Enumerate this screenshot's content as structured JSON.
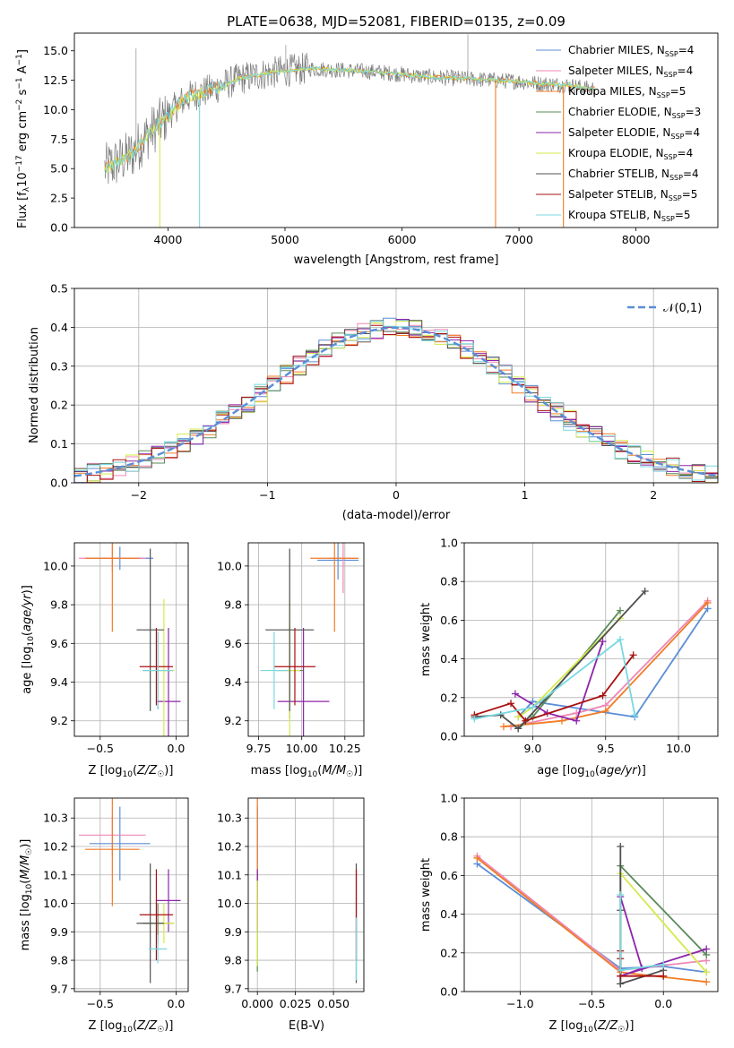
{
  "colors": [
    "#5b8ed6",
    "#ee88b4",
    "#f07c26",
    "#5a8a5a",
    "#8e24aa",
    "#d4ea4a",
    "#505050",
    "#aa1010",
    "#78d8e0"
  ],
  "chart_data": [
    {
      "id": "spectrum",
      "type": "line",
      "title": "PLATE=0638, MJD=52081, FIBERID=0135, z=0.09",
      "xlabel": "wavelength [Angstrom, rest frame]",
      "ylabel": "Flux [f_λ 10^-17 erg cm^-2 s^-1 A^-1]",
      "xlim": [
        3200,
        8700
      ],
      "ylim": [
        0,
        16.5
      ],
      "xticks": [
        4000,
        5000,
        6000,
        7000,
        8000
      ],
      "yticks": [
        0.0,
        2.5,
        5.0,
        7.5,
        10.0,
        12.5,
        15.0
      ],
      "continuum": [
        [
          3460,
          5.0
        ],
        [
          3560,
          5.5
        ],
        [
          3700,
          6.3
        ],
        [
          3800,
          7.6
        ],
        [
          3900,
          8.6
        ],
        [
          4000,
          9.5
        ],
        [
          4100,
          10.6
        ],
        [
          4200,
          11.2
        ],
        [
          4400,
          11.8
        ],
        [
          4600,
          12.6
        ],
        [
          4800,
          13.0
        ],
        [
          5000,
          13.3
        ],
        [
          5200,
          13.5
        ],
        [
          5400,
          13.4
        ],
        [
          5600,
          13.3
        ],
        [
          5800,
          13.2
        ],
        [
          6000,
          13.0
        ],
        [
          6200,
          12.8
        ],
        [
          6400,
          12.7
        ],
        [
          6600,
          12.6
        ],
        [
          6800,
          12.5
        ],
        [
          7000,
          12.4
        ],
        [
          7200,
          12.2
        ],
        [
          7400,
          12.1
        ],
        [
          7600,
          11.8
        ]
      ],
      "spikes_up": [
        [
          6563,
          16.4
        ],
        [
          3727,
          15.2
        ],
        [
          5007,
          15.5
        ]
      ],
      "spikes_down": [
        [
          3930,
          0
        ],
        [
          4270,
          0
        ],
        [
          6800,
          0
        ],
        [
          7380,
          0
        ]
      ],
      "legend": [
        "Chabrier MILES, N_SSP=4",
        "Salpeter MILES, N_SSP=4",
        "Kroupa MILES, N_SSP=5",
        "Chabrier ELODIE, N_SSP=3",
        "Salpeter ELODIE, N_SSP=4",
        "Kroupa ELODIE, N_SSP=4",
        "Chabrier STELIB, N_SSP=4",
        "Salpeter STELIB, N_SSP=5",
        "Kroupa STELIB, N_SSP=5"
      ]
    },
    {
      "id": "residuals",
      "type": "line",
      "title": "",
      "xlabel": "(data-model)/error",
      "ylabel": "Normed distribution",
      "xlim": [
        -2.5,
        2.5
      ],
      "ylim": [
        0,
        0.5
      ],
      "xticks": [
        -2,
        -1,
        0,
        1,
        2
      ],
      "yticks": [
        0.0,
        0.1,
        0.2,
        0.3,
        0.4,
        0.5
      ],
      "legend": [
        "𝒩(0,1)"
      ]
    },
    {
      "id": "z-age",
      "type": "scatter",
      "xlabel": "Z [log10(Z/Z⊙)]",
      "ylabel": "age  [log10(age/yr)]",
      "xlim": [
        -0.67,
        0.08
      ],
      "ylim": [
        9.12,
        10.12
      ],
      "xticks": [
        -0.5,
        0.0
      ],
      "yticks": [
        9.2,
        9.4,
        9.6,
        9.8,
        10.0
      ],
      "points": [
        {
          "s": 0,
          "x": -0.37,
          "y": 10.04,
          "ex": 0.22,
          "ey": 0.06
        },
        {
          "s": 1,
          "x": -0.42,
          "y": 10.04,
          "ex": 0.22,
          "ey": 0.07
        },
        {
          "s": 2,
          "x": -0.42,
          "y": 10.04,
          "ex": 0.18,
          "ey": 0.38
        },
        {
          "s": 3,
          "x": -0.12,
          "y": 9.46,
          "ex": 0.1,
          "ey": 0.2
        },
        {
          "s": 4,
          "x": -0.05,
          "y": 9.3,
          "ex": 0.08,
          "ey": 0.38
        },
        {
          "s": 5,
          "x": -0.08,
          "y": 9.46,
          "ex": 0.07,
          "ey": 0.37
        },
        {
          "s": 6,
          "x": -0.17,
          "y": 9.67,
          "ex": 0.09,
          "ey": 0.42
        },
        {
          "s": 7,
          "x": -0.13,
          "y": 9.48,
          "ex": 0.11,
          "ey": 0.2
        },
        {
          "s": 8,
          "x": -0.12,
          "y": 9.46,
          "ex": 0.1,
          "ey": 0.2
        }
      ]
    },
    {
      "id": "mass-age",
      "type": "scatter",
      "xlabel": "mass [log10(M/M⊙)]",
      "ylabel": "",
      "xlim": [
        9.69,
        10.36
      ],
      "ylim": [
        9.12,
        10.12
      ],
      "xticks": [
        9.75,
        10.0,
        10.25
      ],
      "yticks": [
        9.2,
        9.4,
        9.6,
        9.8,
        10.0
      ],
      "points": [
        {
          "s": 0,
          "x": 10.21,
          "y": 10.03,
          "ex": 0.12,
          "ey": 0.1
        },
        {
          "s": 1,
          "x": 10.24,
          "y": 10.04,
          "ex": 0.08,
          "ey": 0.18
        },
        {
          "s": 2,
          "x": 10.19,
          "y": 10.04,
          "ex": 0.14,
          "ey": 0.38
        },
        {
          "s": 3,
          "x": 9.93,
          "y": 9.46,
          "ex": 0.08,
          "ey": 0.25
        },
        {
          "s": 4,
          "x": 10.01,
          "y": 9.3,
          "ex": 0.15,
          "ey": 0.38
        },
        {
          "s": 5,
          "x": 9.93,
          "y": 9.46,
          "ex": 0.06,
          "ey": 0.37
        },
        {
          "s": 6,
          "x": 9.93,
          "y": 9.67,
          "ex": 0.14,
          "ey": 0.42
        },
        {
          "s": 7,
          "x": 9.96,
          "y": 9.48,
          "ex": 0.12,
          "ey": 0.2
        },
        {
          "s": 8,
          "x": 9.84,
          "y": 9.46,
          "ex": 0.08,
          "ey": 0.2
        }
      ]
    },
    {
      "id": "age-weight",
      "type": "line",
      "xlabel": "age  [log10(age/yr)]",
      "ylabel": "mass weight",
      "xlim": [
        8.53,
        10.27
      ],
      "ylim": [
        0,
        1.0
      ],
      "xticks": [
        9.0,
        9.5,
        10.0
      ],
      "yticks": [
        0.0,
        0.2,
        0.4,
        0.6,
        0.8,
        1.0
      ],
      "series": [
        {
          "s": 0,
          "x": [
            8.9,
            9.0,
            9.7,
            10.2
          ],
          "y": [
            0.1,
            0.18,
            0.1,
            0.66
          ]
        },
        {
          "s": 1,
          "x": [
            8.85,
            9.3,
            9.5,
            10.2
          ],
          "y": [
            0.05,
            0.12,
            0.16,
            0.7
          ]
        },
        {
          "s": 2,
          "x": [
            8.8,
            9.2,
            9.5,
            10.2
          ],
          "y": [
            0.05,
            0.08,
            0.13,
            0.69
          ]
        },
        {
          "s": 3,
          "x": [
            8.9,
            9.0,
            9.6
          ],
          "y": [
            0.04,
            0.1,
            0.65
          ]
        },
        {
          "s": 4,
          "x": [
            8.88,
            9.1,
            9.3,
            9.48
          ],
          "y": [
            0.22,
            0.12,
            0.08,
            0.49
          ]
        },
        {
          "s": 5,
          "x": [
            8.9,
            9.0,
            9.6
          ],
          "y": [
            0.1,
            0.15,
            0.61
          ]
        },
        {
          "s": 6,
          "x": [
            8.6,
            8.78,
            8.9,
            9.77
          ],
          "y": [
            0.1,
            0.11,
            0.04,
            0.75
          ]
        },
        {
          "s": 7,
          "x": [
            8.6,
            8.85,
            8.95,
            9.48,
            9.69
          ],
          "y": [
            0.11,
            0.17,
            0.08,
            0.21,
            0.42
          ]
        },
        {
          "s": 8,
          "x": [
            8.6,
            9.0,
            9.6,
            9.7
          ],
          "y": [
            0.09,
            0.15,
            0.5,
            0.11
          ]
        }
      ]
    },
    {
      "id": "z-mass",
      "type": "scatter",
      "xlabel": "Z [log10(Z/Z⊙)]",
      "ylabel": "mass [log10(M/M⊙)]",
      "xlim": [
        -0.67,
        0.08
      ],
      "ylim": [
        9.69,
        10.37
      ],
      "xticks": [
        -0.5,
        0.0
      ],
      "yticks": [
        9.7,
        9.8,
        9.9,
        10.0,
        10.1,
        10.2,
        10.3
      ],
      "points": [
        {
          "s": 0,
          "x": -0.37,
          "y": 10.21,
          "ex": 0.2,
          "ey": 0.13
        },
        {
          "s": 1,
          "x": -0.42,
          "y": 10.24,
          "ex": 0.22,
          "ey": 0.07
        },
        {
          "s": 2,
          "x": -0.42,
          "y": 10.19,
          "ex": 0.18,
          "ey": 0.2
        },
        {
          "s": 3,
          "x": -0.12,
          "y": 9.93,
          "ex": 0.1,
          "ey": 0.07
        },
        {
          "s": 4,
          "x": -0.05,
          "y": 10.01,
          "ex": 0.08,
          "ey": 0.11
        },
        {
          "s": 5,
          "x": -0.08,
          "y": 9.93,
          "ex": 0.07,
          "ey": 0.07
        },
        {
          "s": 6,
          "x": -0.17,
          "y": 9.93,
          "ex": 0.09,
          "ey": 0.21
        },
        {
          "s": 7,
          "x": -0.13,
          "y": 9.96,
          "ex": 0.11,
          "ey": 0.16
        },
        {
          "s": 8,
          "x": -0.12,
          "y": 9.84,
          "ex": 0.06,
          "ey": 0.05
        }
      ]
    },
    {
      "id": "ebv-mass",
      "type": "scatter",
      "xlabel": "E(B-V)",
      "ylabel": "",
      "xlim": [
        -0.006,
        0.07
      ],
      "ylim": [
        9.69,
        10.37
      ],
      "xticks": [
        0.0,
        0.025,
        0.05
      ],
      "yticks": [
        9.7,
        9.8,
        9.9,
        10.0,
        10.1,
        10.2,
        10.3
      ],
      "points": [
        {
          "s": 0,
          "x": 0.0,
          "y": 10.21,
          "ey": 0.13
        },
        {
          "s": 2,
          "x": 0.0,
          "y": 10.19,
          "ey": 0.18
        },
        {
          "s": 3,
          "x": 0.0,
          "y": 9.93,
          "ey": 0.17
        },
        {
          "s": 4,
          "x": 0.0,
          "y": 10.01,
          "ey": 0.11
        },
        {
          "s": 5,
          "x": 0.0,
          "y": 9.93,
          "ey": 0.15
        },
        {
          "s": 6,
          "x": 0.065,
          "y": 9.93,
          "ey": 0.21
        },
        {
          "s": 7,
          "x": 0.065,
          "y": 9.96,
          "ey": 0.16
        },
        {
          "s": 8,
          "x": 0.065,
          "y": 9.84,
          "ey": 0.11
        }
      ]
    },
    {
      "id": "z-weight",
      "type": "line",
      "xlabel": "Z [log10(Z/Z⊙)]",
      "ylabel": "mass weight",
      "xlim": [
        -1.39,
        0.38
      ],
      "ylim": [
        0,
        1.0
      ],
      "xticks": [
        -1.0,
        -0.5,
        0.0
      ],
      "yticks": [
        0.0,
        0.2,
        0.4,
        0.6,
        0.8,
        1.0
      ],
      "series": [
        {
          "s": 0,
          "x": [
            -1.3,
            -0.3,
            0.0,
            0.3
          ],
          "y": [
            0.66,
            0.12,
            0.13,
            0.1
          ]
        },
        {
          "s": 1,
          "x": [
            -1.3,
            -0.3,
            0.3
          ],
          "y": [
            0.7,
            0.11,
            0.16
          ]
        },
        {
          "s": 2,
          "x": [
            -1.3,
            -0.3,
            0.3
          ],
          "y": [
            0.69,
            0.1,
            0.05
          ]
        },
        {
          "s": 3,
          "x": [
            -0.3,
            -0.3,
            0.3
          ],
          "y": [
            0.04,
            0.65,
            0.19
          ]
        },
        {
          "s": 4,
          "x": [
            -0.3,
            -0.15,
            -0.3,
            0.3
          ],
          "y": [
            0.49,
            0.12,
            0.08,
            0.22
          ]
        },
        {
          "s": 5,
          "x": [
            -0.3,
            0.3
          ],
          "y": [
            0.61,
            0.1
          ]
        },
        {
          "s": 6,
          "x": [
            -0.3,
            -0.3,
            -0.3,
            0.0
          ],
          "y": [
            0.75,
            0.42,
            0.04,
            0.11
          ]
        },
        {
          "s": 7,
          "x": [
            -0.3,
            -0.3,
            -0.3,
            0.0
          ],
          "y": [
            0.21,
            0.17,
            0.08,
            0.08
          ]
        },
        {
          "s": 8,
          "x": [
            -0.3,
            -0.3,
            0.0
          ],
          "y": [
            0.5,
            0.11,
            0.14
          ]
        }
      ]
    }
  ]
}
